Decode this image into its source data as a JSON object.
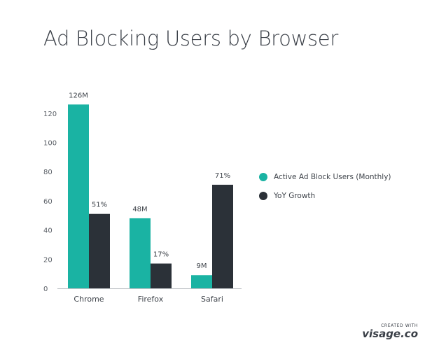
{
  "chart_data": {
    "type": "bar",
    "title": "Ad Blocking Users by Browser",
    "categories": [
      "Chrome",
      "Firefox",
      "Safari"
    ],
    "series": [
      {
        "name": "Active Ad Block Users (Monthly)",
        "values": [
          126,
          48,
          9
        ],
        "labels": [
          "126M",
          "48M",
          "9M"
        ],
        "color": "#1ab3a3"
      },
      {
        "name": "YoY Growth",
        "values": [
          51,
          17,
          71
        ],
        "labels": [
          "51%",
          "17%",
          "71%"
        ],
        "color": "#2b3138"
      }
    ],
    "ylim": [
      0,
      130
    ],
    "yticks": [
      0,
      20,
      40,
      60,
      80,
      100,
      120
    ],
    "xlabel": "",
    "ylabel": "",
    "grid": false,
    "legend_position": "right"
  },
  "watermark": {
    "small": "CREATED WITH",
    "brand": "visage.co"
  }
}
